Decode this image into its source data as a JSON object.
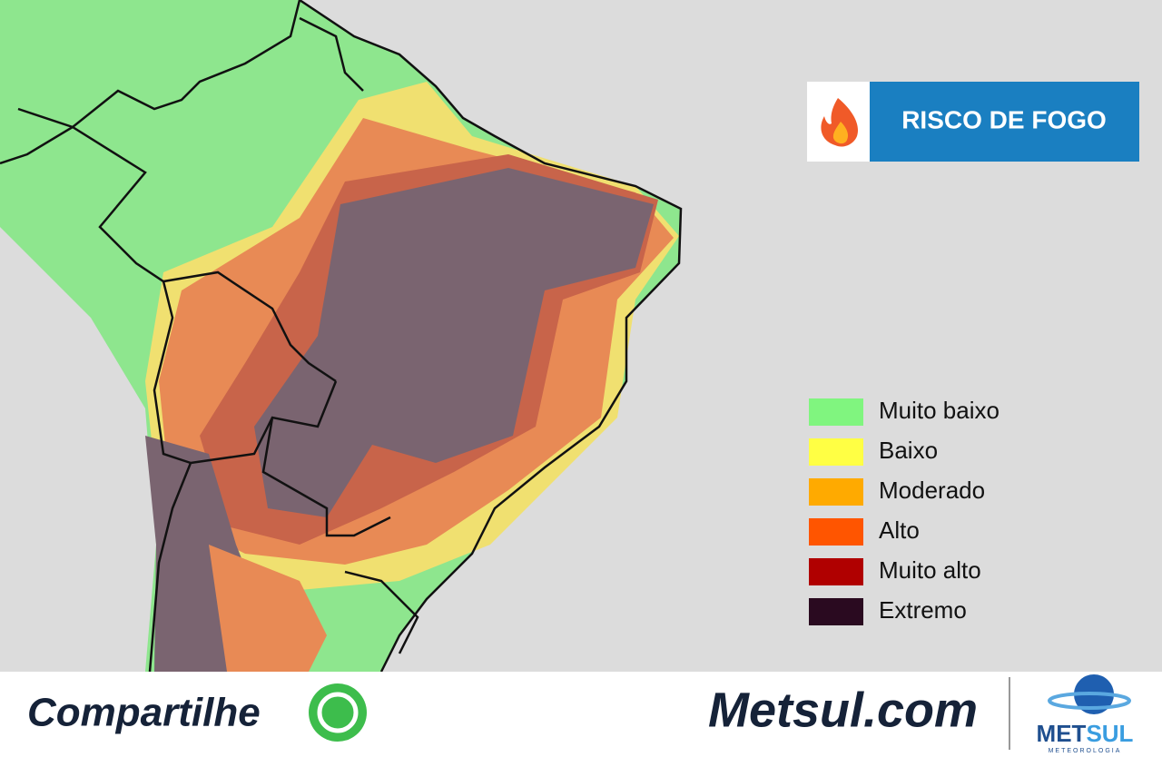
{
  "header": {
    "title": "RISCO DE FOGO"
  },
  "legend": {
    "items": [
      {
        "label": "Muito baixo",
        "color": "#80f57f"
      },
      {
        "label": "Baixo",
        "color": "#ffff44"
      },
      {
        "label": "Moderado",
        "color": "#ffaa00"
      },
      {
        "label": "Alto",
        "color": "#ff5500"
      },
      {
        "label": "Muito alto",
        "color": "#b00000"
      },
      {
        "label": "Extremo",
        "color": "#2a0a20"
      }
    ]
  },
  "footer": {
    "share": "Compartilhe",
    "site": "Metsul.com",
    "logo_parts": [
      "MET",
      "SUL"
    ],
    "logo_subtitle": "METEOROLOGIA"
  }
}
